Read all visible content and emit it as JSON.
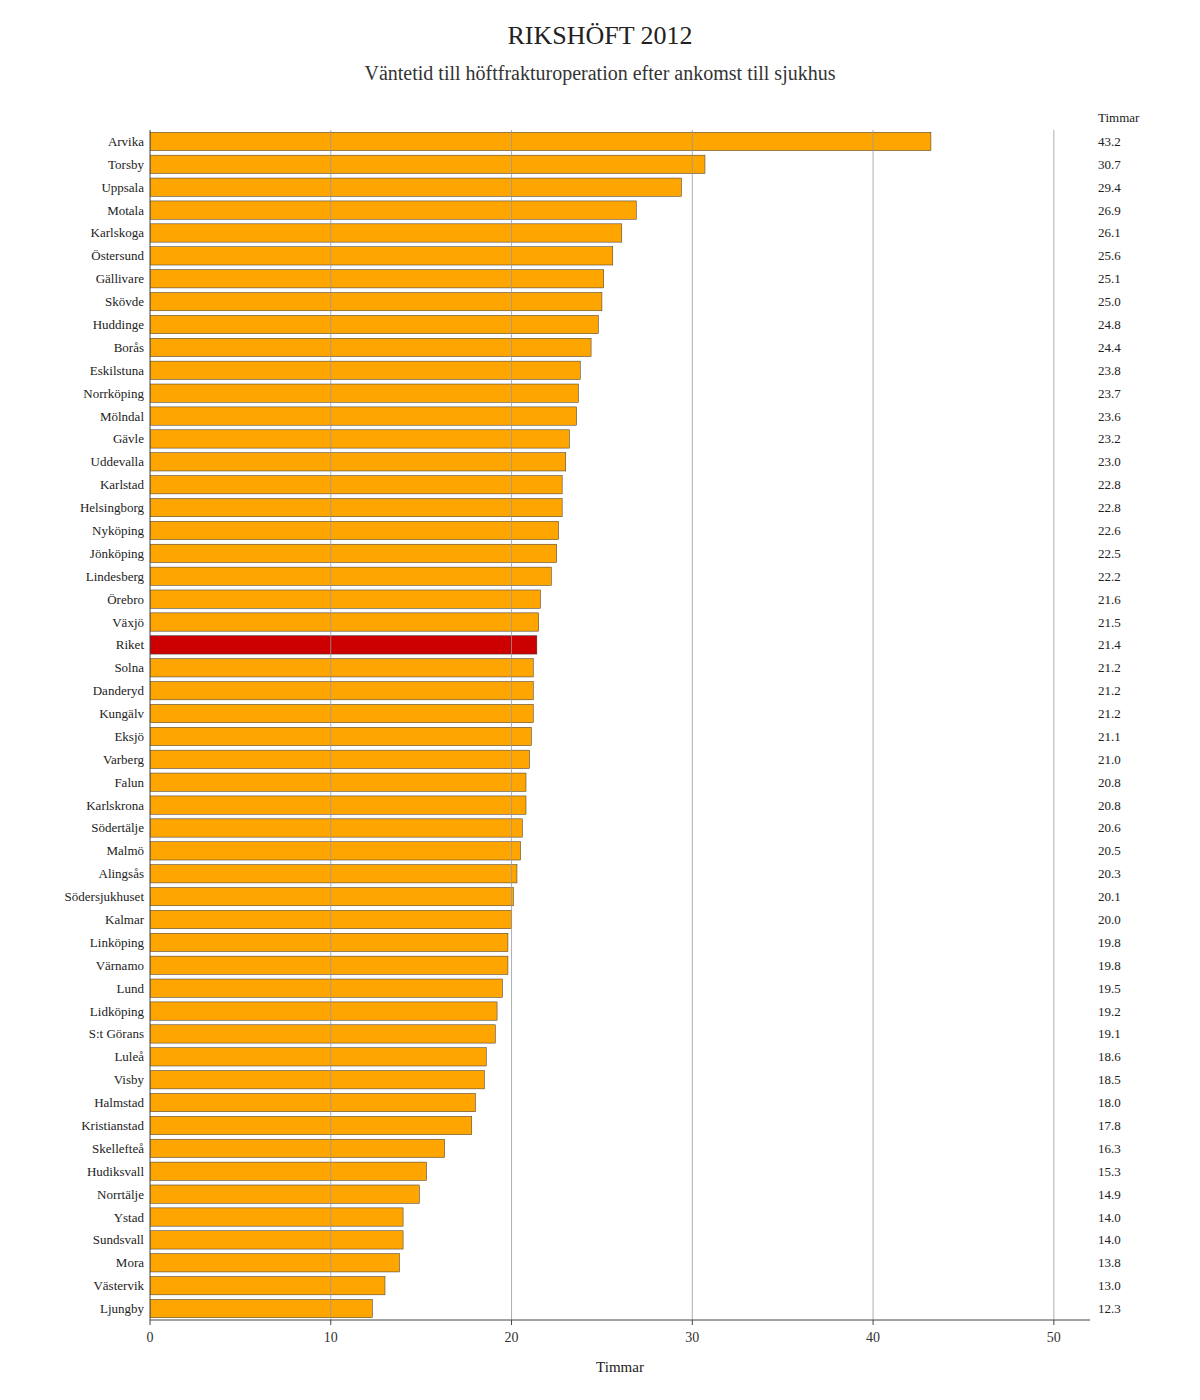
{
  "chart_data": {
    "type": "bar",
    "orientation": "horizontal",
    "title": "RIKSHÖFT 2012",
    "subtitle": "Väntetid till höftfrakturoperation efter ankomst till sjukhus",
    "x_label": "Timmar",
    "annotation": "Timmar",
    "categories": [
      "Arvika",
      "Torsby",
      "Uppsala",
      "Motala",
      "Karlskoga",
      "Östersund",
      "Gällivare",
      "Skövde",
      "Huddinge",
      "Borås",
      "Eskilstuna",
      "Norrköping",
      "Mölndal",
      "Gävle",
      "Uddevalla",
      "Karlstad",
      "Helsingborg",
      "Nyköping",
      "Jönköping",
      "Lindesberg",
      "Örebro",
      "Växjö",
      "Riket",
      "Solna",
      "Danderyd",
      "Kungälv",
      "Eksjö",
      "Varberg",
      "Falun",
      "Karlskrona",
      "Södertälje",
      "Malmö",
      "Alingsås",
      "Södersjukhuset",
      "Kalmar",
      "Linköping",
      "Värnamo",
      "Lund",
      "Lidköping",
      "S:t Görans",
      "Luleå",
      "Visby",
      "Halmstad",
      "Kristianstad",
      "Skellefteå",
      "Hudiksvall",
      "Norrtälje",
      "Ystad",
      "Sundsvall",
      "Mora",
      "Västervik",
      "Ljungby"
    ],
    "values": [
      43.2,
      30.7,
      29.4,
      26.9,
      26.1,
      25.6,
      25.1,
      25.0,
      24.8,
      24.4,
      23.8,
      23.7,
      23.6,
      23.2,
      23.0,
      22.8,
      22.8,
      22.6,
      22.5,
      22.2,
      21.6,
      21.5,
      21.4,
      21.2,
      21.2,
      21.2,
      21.1,
      21.0,
      20.8,
      20.8,
      20.6,
      20.5,
      20.3,
      20.1,
      20.0,
      19.8,
      19.8,
      19.5,
      19.2,
      19.1,
      18.6,
      18.5,
      18.0,
      17.8,
      16.3,
      15.3,
      14.9,
      14.0,
      14.0,
      13.8,
      13.0,
      12.3
    ],
    "value_labels": [
      "43.2",
      "30.7",
      "29.4",
      "26.9",
      "26.1",
      "25.6",
      "25.1",
      "25.0",
      "24.8",
      "24.4",
      "23.8",
      "23.7",
      "23.6",
      "23.2",
      "23.0",
      "22.8",
      "22.8",
      "22.6",
      "22.5",
      "22.2",
      "21.6",
      "21.5",
      "21.4",
      "21.2",
      "21.2",
      "21.2",
      "21.1",
      "21.0",
      "20.8",
      "20.8",
      "20.6",
      "20.5",
      "20.3",
      "20.1",
      "20.0",
      "19.8",
      "19.8",
      "19.5",
      "19.2",
      "19.1",
      "18.6",
      "18.5",
      "18.0",
      "17.8",
      "16.3",
      "15.3",
      "14.9",
      "14.0",
      "14.0",
      "13.8",
      "13.0",
      "12.3"
    ],
    "colors": [
      "#FFA500",
      "#FFA500",
      "#FFA500",
      "#FFA500",
      "#FFA500",
      "#FFA500",
      "#FFA500",
      "#FFA500",
      "#FFA500",
      "#FFA500",
      "#FFA500",
      "#FFA500",
      "#FFA500",
      "#FFA500",
      "#FFA500",
      "#FFA500",
      "#FFA500",
      "#FFA500",
      "#FFA500",
      "#FFA500",
      "#FFA500",
      "#FFA500",
      "#CC0000",
      "#FFA500",
      "#FFA500",
      "#FFA500",
      "#FFA500",
      "#FFA500",
      "#FFA500",
      "#FFA500",
      "#FFA500",
      "#FFA500",
      "#FFA500",
      "#FFA500",
      "#FFA500",
      "#FFA500",
      "#FFA500",
      "#FFA500",
      "#FFA500",
      "#FFA500",
      "#FFA500",
      "#FFA500",
      "#FFA500",
      "#FFA500",
      "#FFA500",
      "#FFA500",
      "#FFA500",
      "#FFA500",
      "#FFA500",
      "#FFA500",
      "#FFA500",
      "#FFA500"
    ],
    "xlim": [
      0,
      52
    ],
    "xticks": [
      0,
      10,
      20,
      30,
      40,
      50
    ],
    "grid": true,
    "data_labels": true
  }
}
